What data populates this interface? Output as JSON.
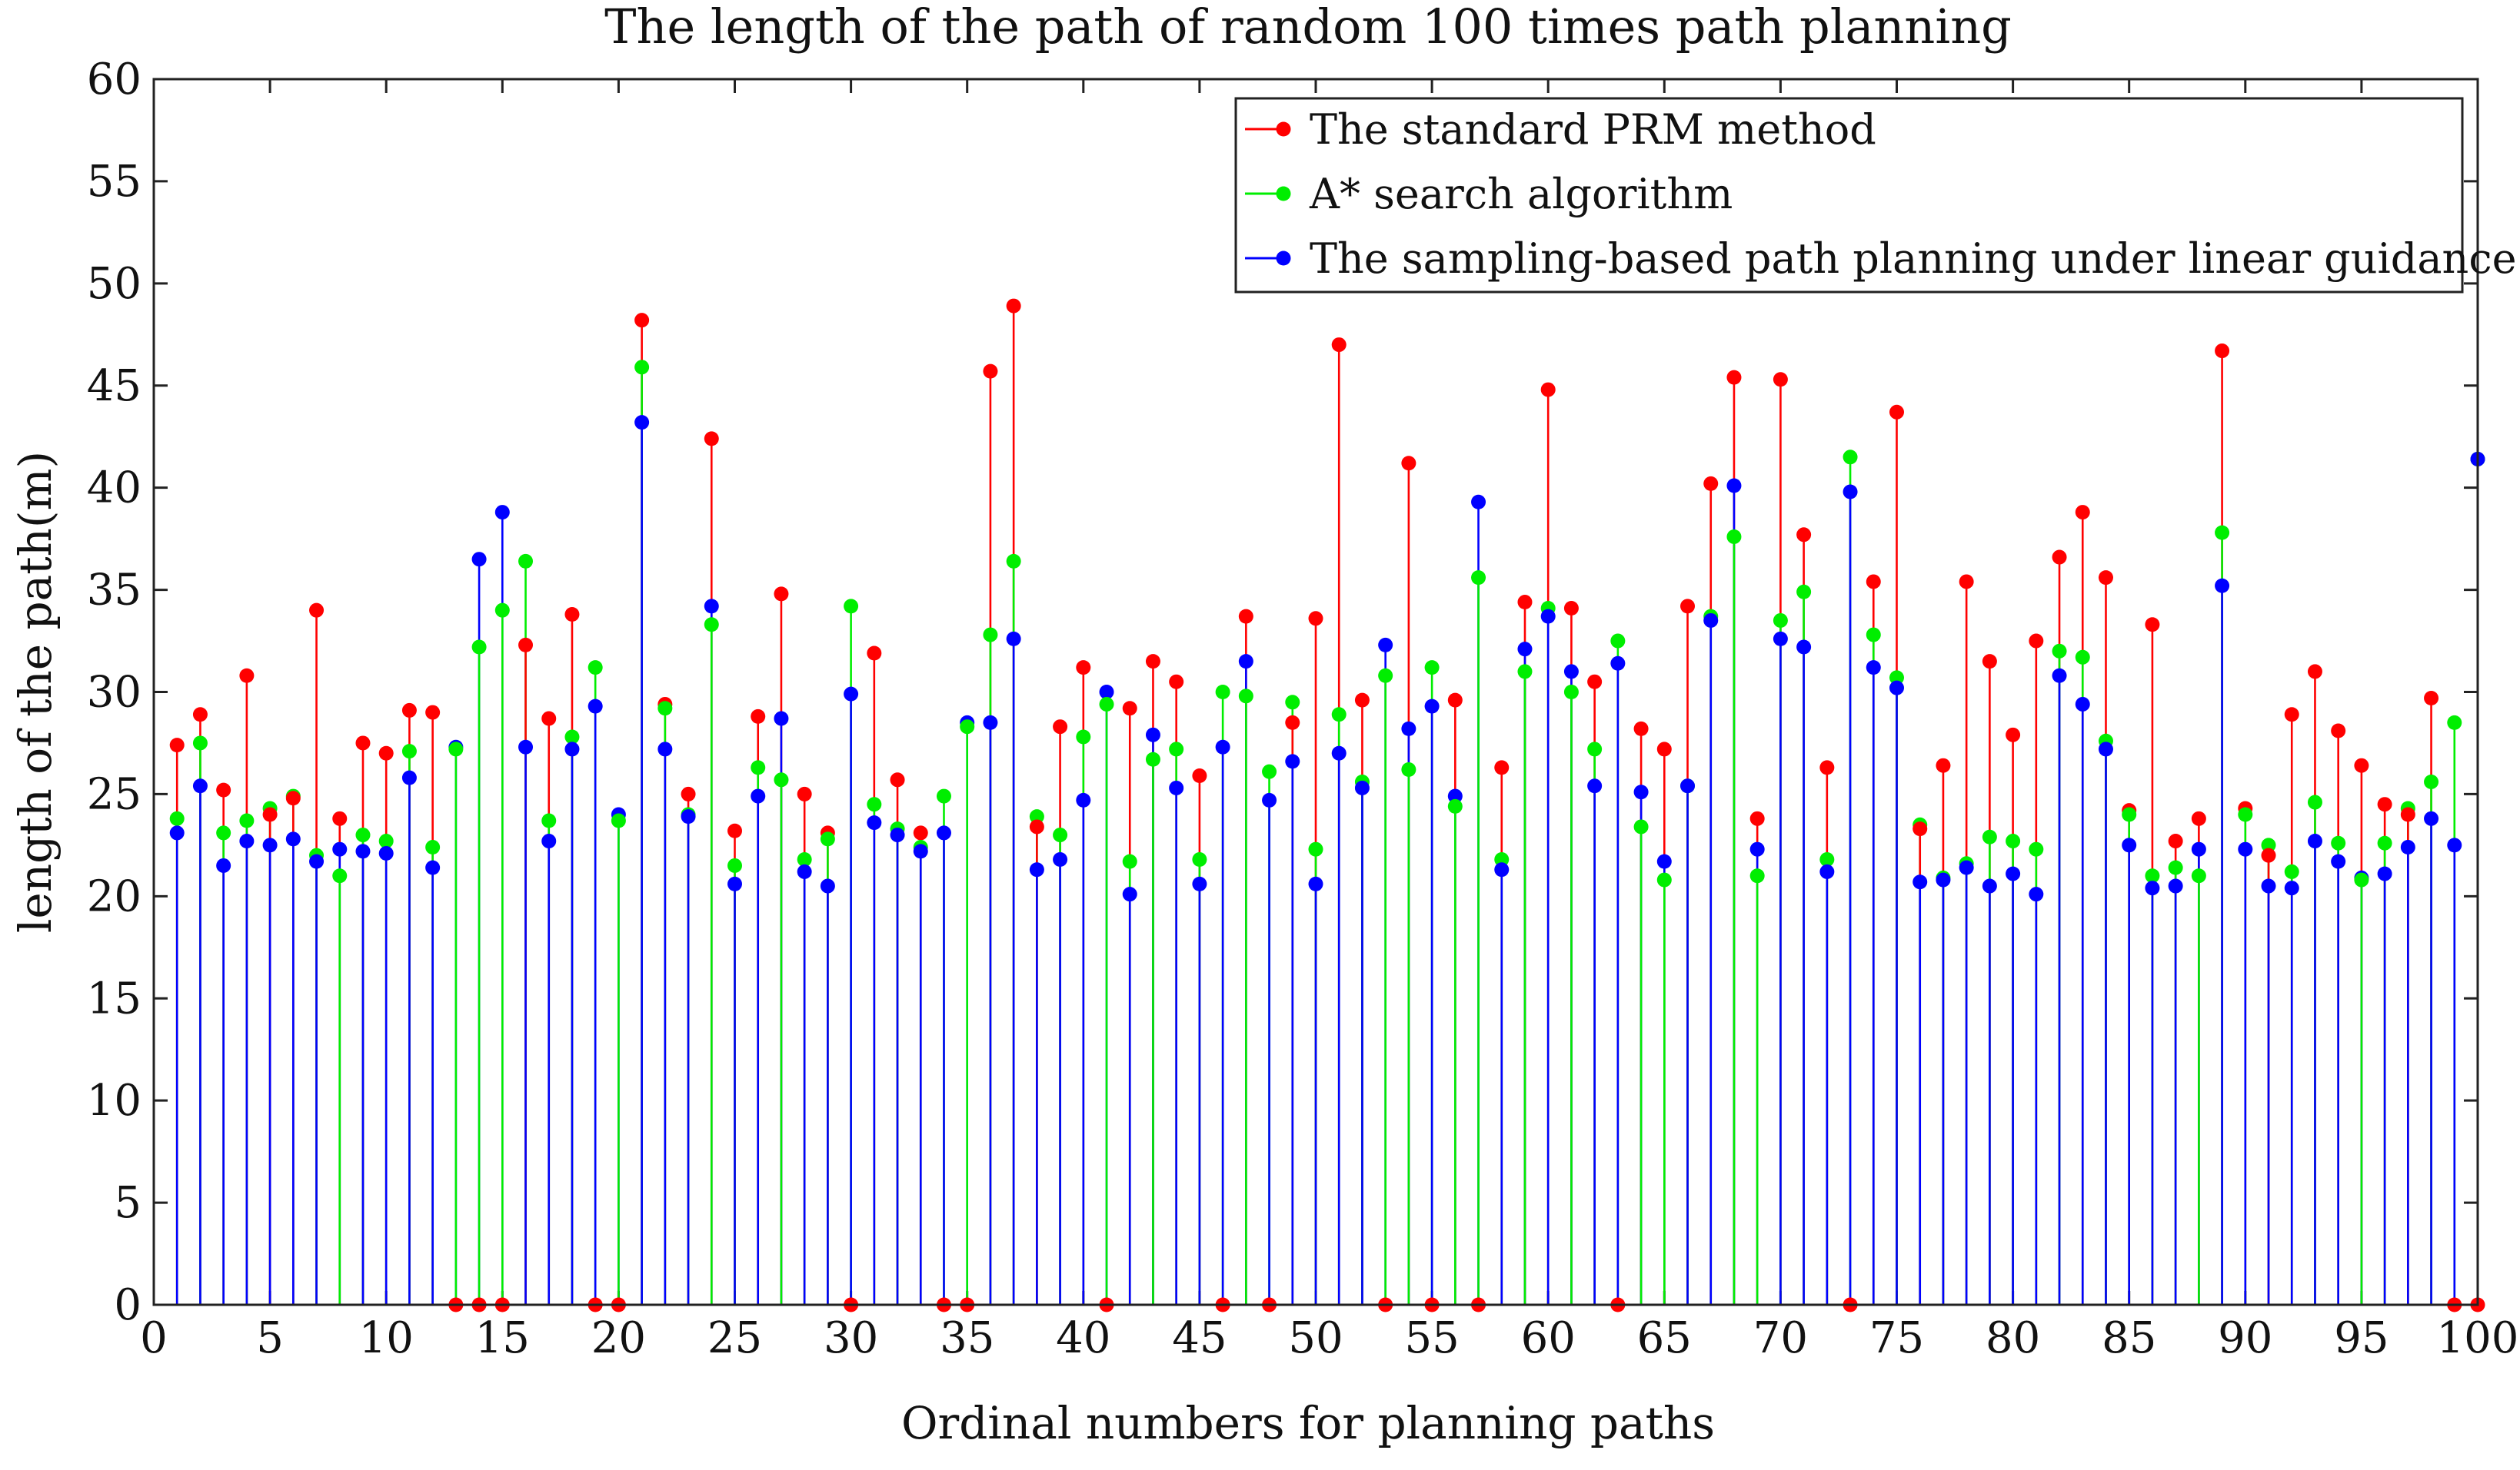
{
  "chart_data": {
    "type": "stem",
    "title": "The length of the path of random 100 times path planning",
    "xlabel": "Ordinal numbers for planning paths",
    "ylabel": "length of the path(m)",
    "xlim": [
      0,
      100
    ],
    "ylim": [
      0,
      60
    ],
    "xticks": [
      0,
      5,
      10,
      15,
      20,
      25,
      30,
      35,
      40,
      45,
      50,
      55,
      60,
      65,
      70,
      75,
      80,
      85,
      90,
      95,
      100
    ],
    "yticks": [
      0,
      5,
      10,
      15,
      20,
      25,
      30,
      35,
      40,
      45,
      50,
      55,
      60
    ],
    "legend_position": "top-right",
    "x": [
      1,
      2,
      3,
      4,
      5,
      6,
      7,
      8,
      9,
      10,
      11,
      12,
      13,
      14,
      15,
      16,
      17,
      18,
      19,
      20,
      21,
      22,
      23,
      24,
      25,
      26,
      27,
      28,
      29,
      30,
      31,
      32,
      33,
      34,
      35,
      36,
      37,
      38,
      39,
      40,
      41,
      42,
      43,
      44,
      45,
      46,
      47,
      48,
      49,
      50,
      51,
      52,
      53,
      54,
      55,
      56,
      57,
      58,
      59,
      60,
      61,
      62,
      63,
      64,
      65,
      66,
      67,
      68,
      69,
      70,
      71,
      72,
      73,
      74,
      75,
      76,
      77,
      78,
      79,
      80,
      81,
      82,
      83,
      84,
      85,
      86,
      87,
      88,
      89,
      90,
      91,
      92,
      93,
      94,
      95,
      96,
      97,
      98,
      99,
      100
    ],
    "series": [
      {
        "name": "The standard PRM method",
        "color": "#ff0000",
        "values": [
          27.4,
          28.9,
          25.2,
          30.8,
          24.0,
          24.8,
          34.0,
          23.8,
          27.5,
          27.0,
          29.1,
          29.0,
          0,
          0,
          0,
          32.3,
          28.7,
          33.8,
          0,
          0,
          48.2,
          29.4,
          25.0,
          42.4,
          23.2,
          28.8,
          34.8,
          25.0,
          23.1,
          0,
          31.9,
          25.7,
          23.1,
          0,
          0,
          45.7,
          48.9,
          23.4,
          28.3,
          31.2,
          0,
          29.2,
          31.5,
          30.5,
          25.9,
          0,
          33.7,
          0,
          28.5,
          33.6,
          47.0,
          29.6,
          0,
          41.2,
          0,
          29.6,
          0,
          26.3,
          34.4,
          44.8,
          34.1,
          30.5,
          0,
          28.2,
          27.2,
          34.2,
          40.2,
          45.4,
          23.8,
          45.3,
          37.7,
          26.3,
          0,
          35.4,
          43.7,
          23.3,
          26.4,
          35.4,
          31.5,
          27.9,
          32.5,
          36.6,
          38.8,
          35.6,
          24.2,
          33.3,
          22.7,
          23.8,
          46.7,
          24.3,
          22.0,
          28.9,
          31.0,
          28.1,
          26.4,
          24.5,
          24.0,
          29.7,
          0,
          0
        ]
      },
      {
        "name": "A* search algorithm",
        "color": "#00ee00",
        "values": [
          23.8,
          27.5,
          23.1,
          23.7,
          24.3,
          24.9,
          22.0,
          21.0,
          23.0,
          22.7,
          27.1,
          22.4,
          27.2,
          32.2,
          34.0,
          36.4,
          23.7,
          27.8,
          31.2,
          23.7,
          45.9,
          29.2,
          24.0,
          33.3,
          21.5,
          26.3,
          25.7,
          21.8,
          22.8,
          34.2,
          24.5,
          23.3,
          22.4,
          24.9,
          28.3,
          32.8,
          36.4,
          23.9,
          23.0,
          27.8,
          29.4,
          21.7,
          26.7,
          27.2,
          21.8,
          30.0,
          29.8,
          26.1,
          29.5,
          22.3,
          28.9,
          25.6,
          30.8,
          26.2,
          31.2,
          24.4,
          35.6,
          21.8,
          31.0,
          34.1,
          30.0,
          27.2,
          32.5,
          23.4,
          20.8,
          25.4,
          33.7,
          37.6,
          21.0,
          33.5,
          34.9,
          21.8,
          41.5,
          32.8,
          30.7,
          23.5,
          20.9,
          21.6,
          22.9,
          22.7,
          22.3,
          32.0,
          31.7,
          27.6,
          24.0,
          21.0,
          21.4,
          21.0,
          37.8,
          24.0,
          22.5,
          21.2,
          24.6,
          22.6,
          20.8,
          22.6,
          24.3,
          25.6,
          28.5,
          41.4
        ]
      },
      {
        "name": "The sampling-based path planning under linear guidance",
        "color": "#0000ff",
        "values": [
          23.1,
          25.4,
          21.5,
          22.7,
          22.5,
          22.8,
          21.7,
          22.3,
          22.2,
          22.1,
          25.8,
          21.4,
          27.3,
          36.5,
          38.8,
          27.3,
          22.7,
          27.2,
          29.3,
          24.0,
          43.2,
          27.2,
          23.9,
          34.2,
          20.6,
          24.9,
          28.7,
          21.2,
          20.5,
          29.9,
          23.6,
          23.0,
          22.2,
          23.1,
          28.5,
          28.5,
          32.6,
          21.3,
          21.8,
          24.7,
          30.0,
          20.1,
          27.9,
          25.3,
          20.6,
          27.3,
          31.5,
          24.7,
          26.6,
          20.6,
          27.0,
          25.3,
          32.3,
          28.2,
          29.3,
          24.9,
          39.3,
          21.3,
          32.1,
          33.7,
          31.0,
          25.4,
          31.4,
          25.1,
          21.7,
          25.4,
          33.5,
          40.1,
          22.3,
          32.6,
          32.2,
          21.2,
          39.8,
          31.2,
          30.2,
          20.7,
          20.8,
          21.4,
          20.5,
          21.1,
          20.1,
          30.8,
          29.4,
          27.2,
          22.5,
          20.4,
          20.5,
          22.3,
          35.2,
          22.3,
          20.5,
          20.4,
          22.7,
          21.7,
          20.9,
          21.1,
          22.4,
          23.8,
          22.5,
          41.4
        ]
      }
    ]
  }
}
